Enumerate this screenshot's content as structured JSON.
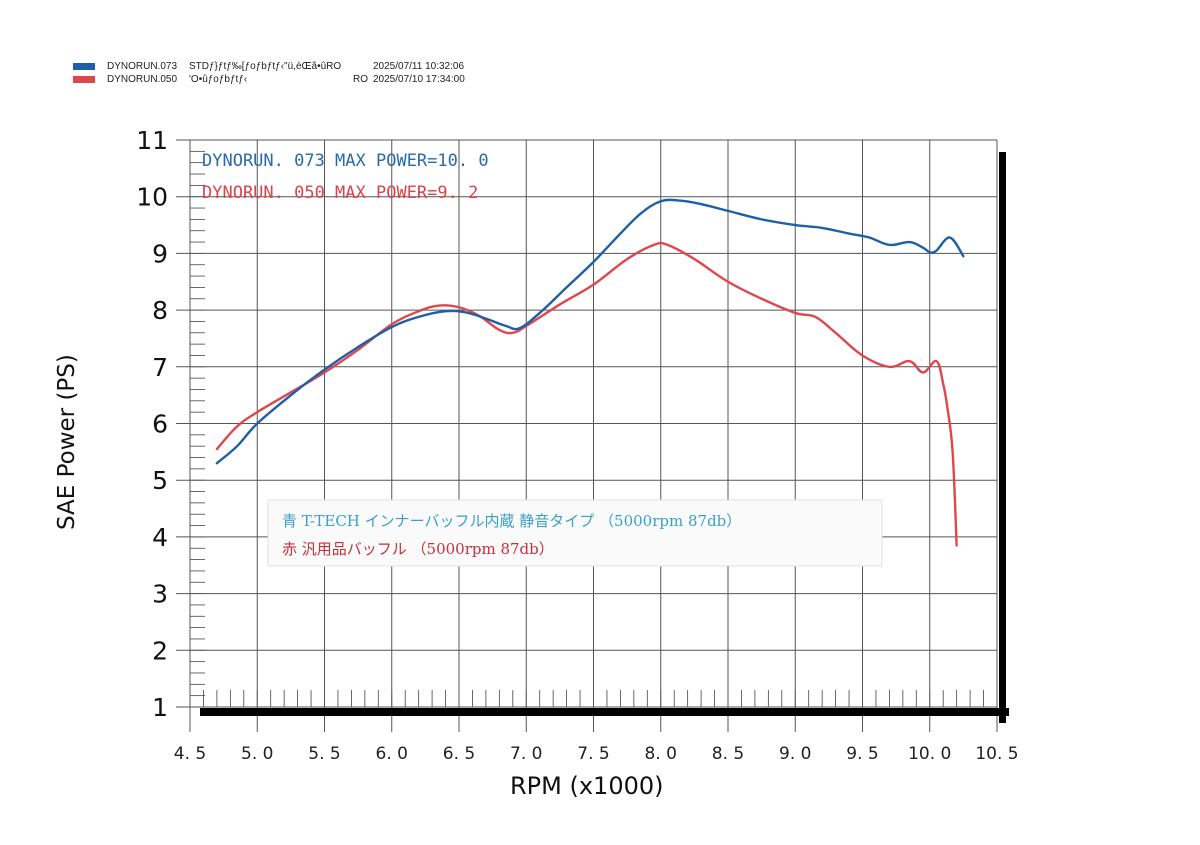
{
  "header": {
    "runs": [
      {
        "id": "DYNORUN.073",
        "desc": "STDƒ}ƒtƒ‰[ƒoƒbƒtƒ‹\"ü,èŒã•ûRO",
        "date": "2025/07/11 10:32:06",
        "color": "#1f5fa8"
      },
      {
        "id": "DYNORUN.050",
        "desc": "'O•ûƒoƒbƒtƒ‹",
        "code": "RO",
        "date": "2025/07/10 17:34:00",
        "color": "#e0474c"
      }
    ]
  },
  "legend_top": [
    {
      "label": "DYNORUN. 073   MAX POWER=10. 0",
      "color": "#2a6aa8"
    },
    {
      "label": "DYNORUN. 050   MAX POWER=9. 2",
      "color": "#d9434a"
    }
  ],
  "note_box": {
    "line1": "青  T-TECH インナーバッフル内蔵  静音タイプ （5000rpm 87db）",
    "line2": "赤  汎用品バッフル （5000rpm 87db）",
    "line1_color": "#3aa0c8",
    "line2_color": "#c8303a"
  },
  "axes": {
    "ylabel": "SAE Power  (PS)",
    "xlabel": "RPM  (x1000)"
  },
  "chart_data": {
    "type": "line",
    "title": "",
    "xlabel": "RPM (x1000)",
    "ylabel": "SAE Power (PS)",
    "xlim": [
      4.5,
      10.5
    ],
    "ylim": [
      1,
      11
    ],
    "xticks": [
      "4.5",
      "5.0",
      "5.5",
      "6.0",
      "6.5",
      "7.0",
      "7.5",
      "8.0",
      "8.5",
      "9.0",
      "9.5",
      "10.0",
      "10.5"
    ],
    "yticks": [
      "1",
      "2",
      "3",
      "4",
      "5",
      "6",
      "7",
      "8",
      "9",
      "10",
      "11"
    ],
    "grid": true,
    "legend": [
      "DYNORUN.073 MAX POWER=10.0",
      "DYNORUN.050 MAX POWER=9.2"
    ],
    "series": [
      {
        "name": "DYNORUN.073",
        "color": "#1f5fa8",
        "max_power": 10.0,
        "x": [
          4.7,
          4.85,
          5.0,
          5.25,
          5.5,
          5.75,
          6.0,
          6.2,
          6.4,
          6.55,
          6.7,
          6.85,
          6.95,
          7.1,
          7.3,
          7.5,
          7.7,
          7.85,
          8.0,
          8.15,
          8.3,
          8.5,
          8.75,
          9.0,
          9.2,
          9.4,
          9.55,
          9.7,
          9.85,
          9.95,
          10.0,
          10.05,
          10.15,
          10.25
        ],
        "y": [
          5.3,
          5.6,
          6.0,
          6.5,
          6.95,
          7.35,
          7.7,
          7.88,
          7.98,
          7.96,
          7.85,
          7.72,
          7.68,
          7.95,
          8.4,
          8.85,
          9.35,
          9.7,
          9.92,
          9.93,
          9.87,
          9.75,
          9.6,
          9.5,
          9.45,
          9.35,
          9.28,
          9.15,
          9.2,
          9.1,
          9.02,
          9.05,
          9.28,
          8.95
        ]
      },
      {
        "name": "DYNORUN.050",
        "color": "#e0474c",
        "max_power": 9.2,
        "x": [
          4.7,
          4.85,
          5.0,
          5.25,
          5.5,
          5.75,
          6.0,
          6.2,
          6.35,
          6.5,
          6.65,
          6.8,
          6.9,
          7.0,
          7.25,
          7.5,
          7.75,
          7.95,
          8.05,
          8.25,
          8.5,
          8.75,
          9.0,
          9.15,
          9.3,
          9.5,
          9.7,
          9.85,
          9.95,
          10.05,
          10.1,
          10.13,
          10.17,
          10.2
        ],
        "y": [
          5.55,
          5.95,
          6.2,
          6.55,
          6.9,
          7.3,
          7.75,
          7.98,
          8.08,
          8.05,
          7.9,
          7.65,
          7.6,
          7.72,
          8.1,
          8.45,
          8.9,
          9.15,
          9.15,
          8.9,
          8.5,
          8.2,
          7.95,
          7.88,
          7.6,
          7.2,
          7.0,
          7.1,
          6.9,
          7.1,
          6.7,
          6.3,
          5.5,
          3.85
        ]
      }
    ]
  }
}
